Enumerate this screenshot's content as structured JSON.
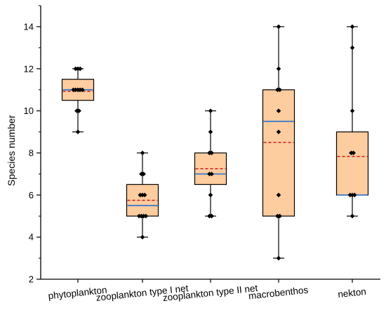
{
  "chart_data": {
    "type": "box",
    "title": "",
    "xlabel": "",
    "ylabel": "Species number",
    "ylim": [
      2,
      15
    ],
    "yticks": [
      2,
      4,
      6,
      8,
      10,
      12,
      14
    ],
    "grid": false,
    "legend": "none",
    "colors": {
      "box_fill": "#fdcc9f",
      "box_stroke": "#000000",
      "median": "#1f6fd1",
      "mean": "#d11a1a",
      "points": "#000000"
    },
    "categories": [
      "phytoplankton",
      "zooplankton type I net",
      "zooplankton type II net",
      "macrobenthos",
      "nekton"
    ],
    "boxes": [
      {
        "category": "phytoplankton",
        "whisker_low": 9,
        "q1": 10.5,
        "median": 11,
        "mean": 10.93,
        "q3": 11.5,
        "whisker_high": 12,
        "points": [
          9,
          10,
          10,
          11,
          11,
          11,
          11,
          11,
          12,
          12,
          12
        ]
      },
      {
        "category": "zooplankton type I net",
        "whisker_low": 4,
        "q1": 5,
        "median": 5.5,
        "mean": 5.75,
        "q3": 6.5,
        "whisker_high": 8,
        "points": [
          4,
          5,
          5,
          5,
          5,
          6,
          6,
          6,
          7,
          7,
          8
        ]
      },
      {
        "category": "zooplankton type II net",
        "whisker_low": 5,
        "q1": 6.5,
        "median": 7,
        "mean": 7.25,
        "q3": 8,
        "whisker_high": 10,
        "points": [
          5,
          5,
          6,
          7,
          7,
          8,
          8,
          9,
          10
        ]
      },
      {
        "category": "macrobenthos",
        "whisker_low": 3,
        "q1": 5,
        "median": 9.5,
        "mean": 8.5,
        "q3": 11,
        "whisker_high": 14,
        "points": [
          3,
          5,
          5,
          6,
          9,
          10,
          11,
          11,
          12,
          14
        ]
      },
      {
        "category": "nekton",
        "whisker_low": 5,
        "q1": 6,
        "median": 6,
        "mean": 7.83,
        "q3": 9,
        "whisker_high": 14,
        "points": [
          5,
          6,
          6,
          6,
          8,
          8,
          10,
          13,
          14
        ]
      }
    ]
  }
}
